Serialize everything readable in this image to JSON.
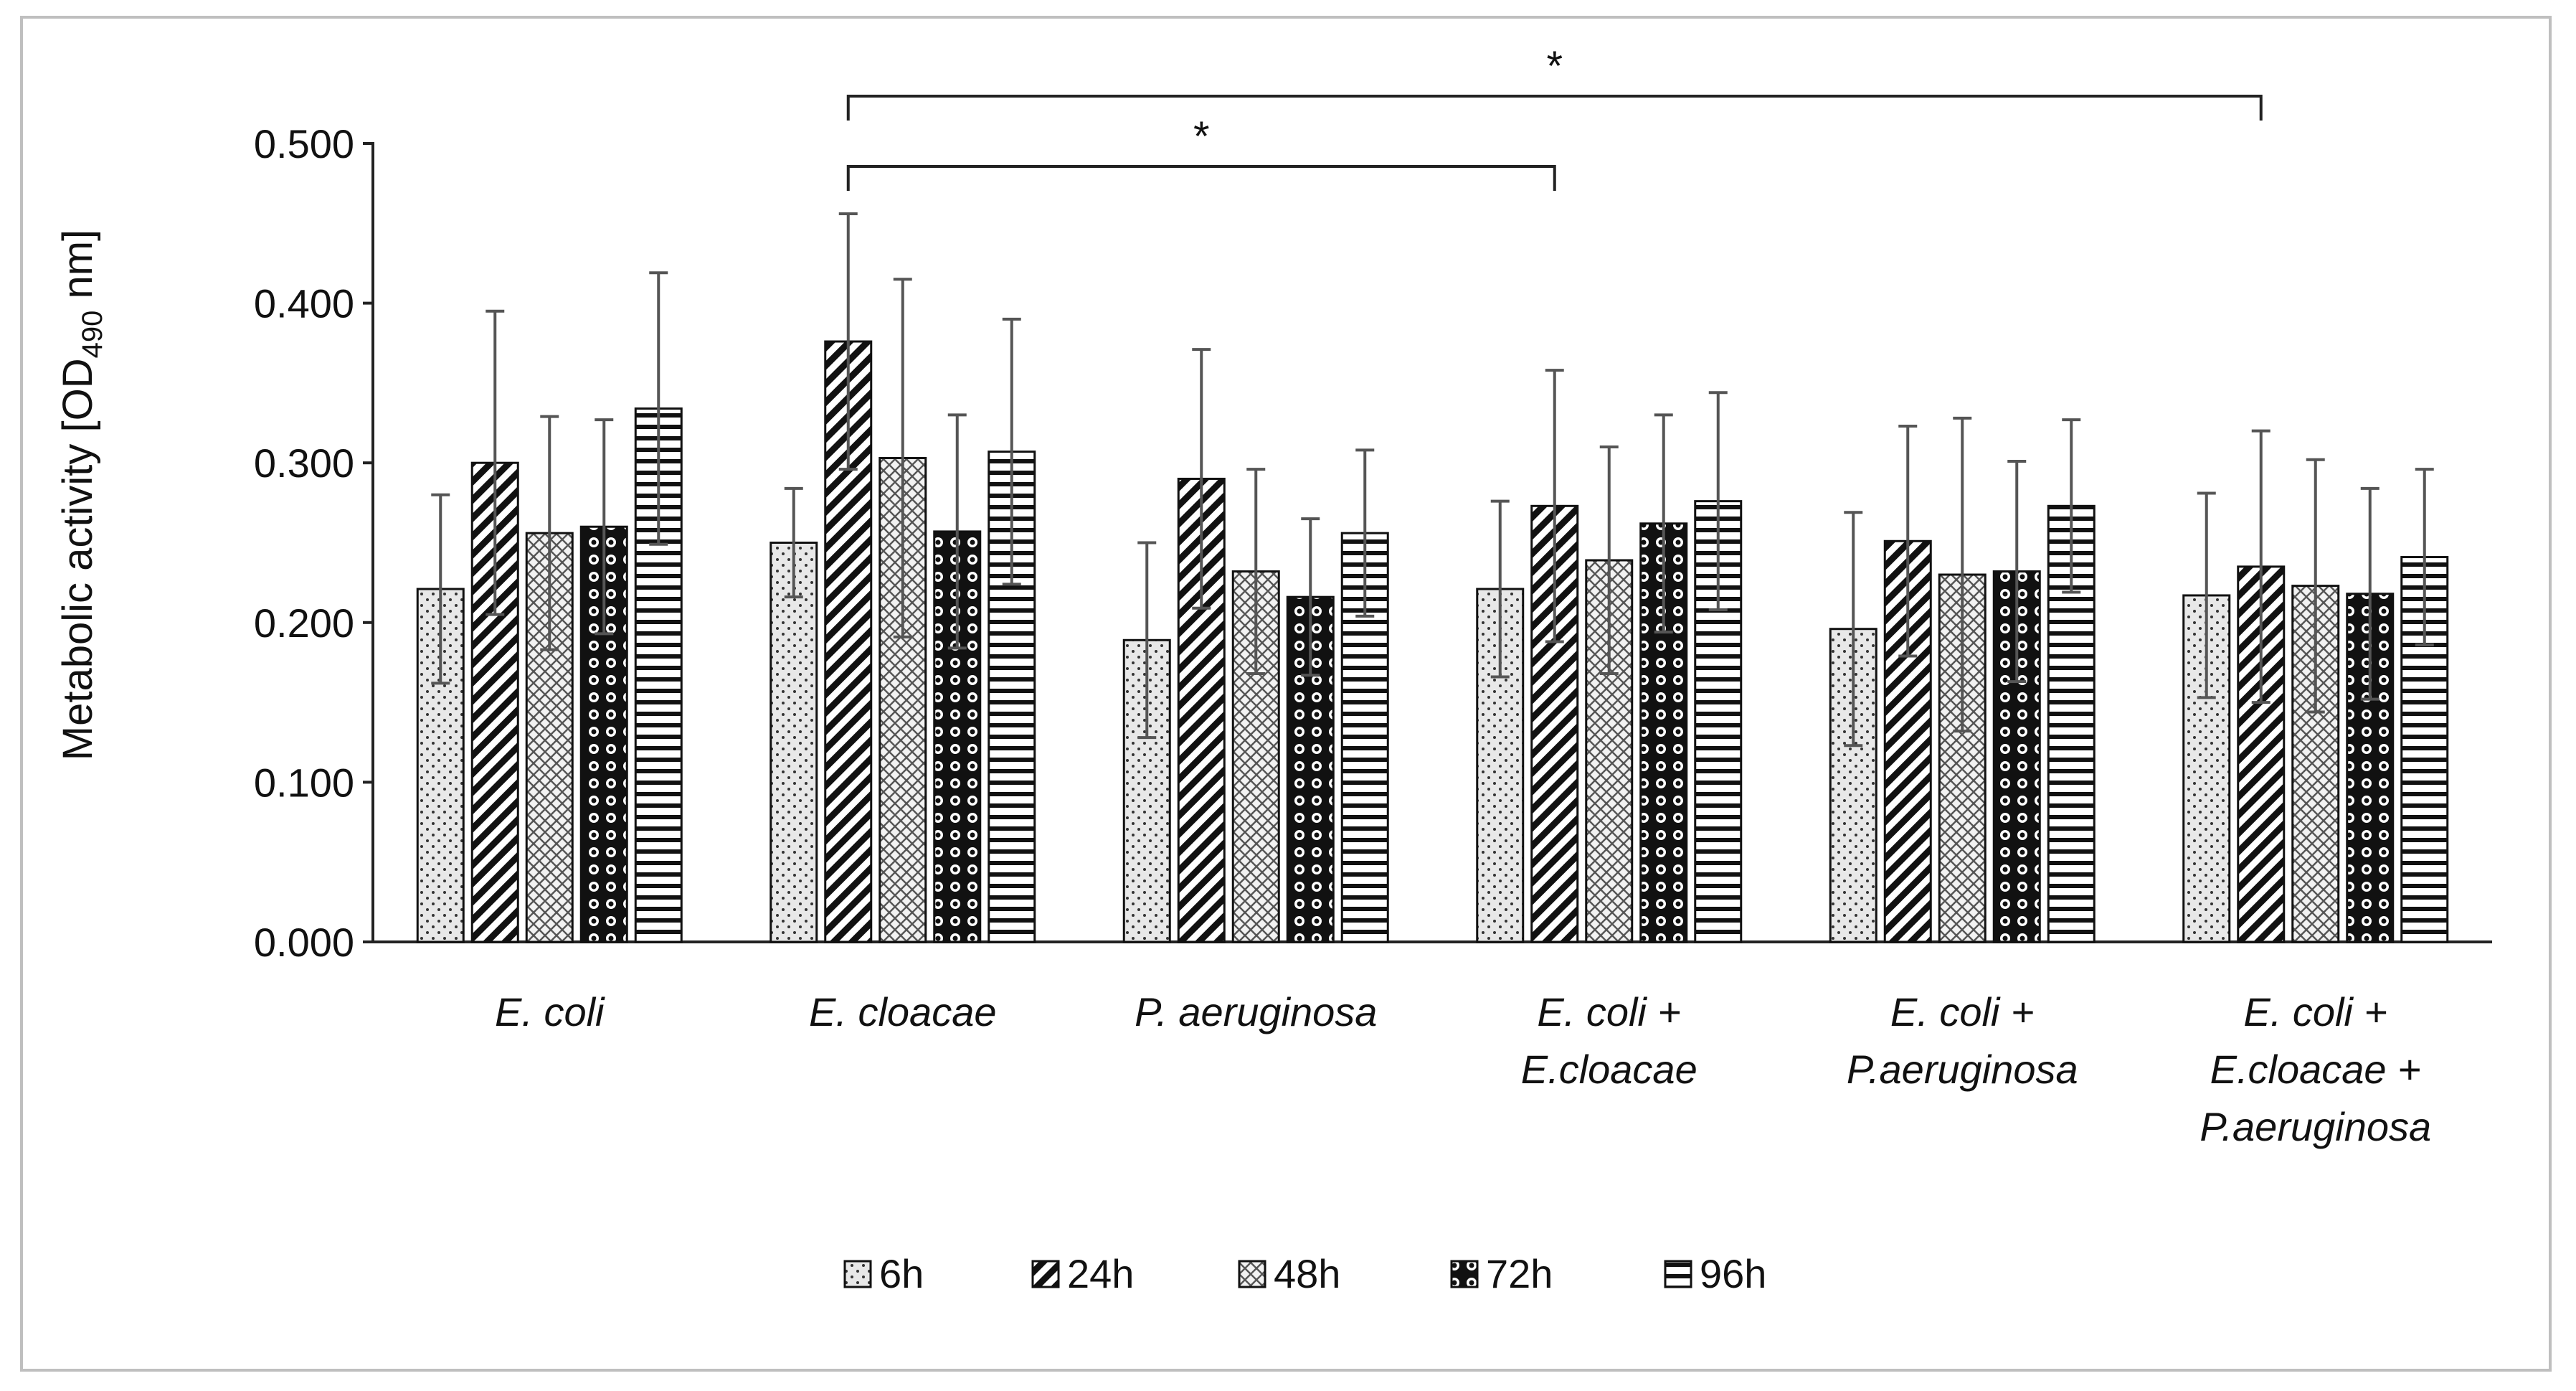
{
  "chart_data": {
    "type": "bar",
    "title": "",
    "xlabel": "",
    "ylabel": "Metabolic activity [OD490 nm]",
    "ylabel_parts": {
      "main": "Metabolic activity [OD",
      "sub": "490",
      "end": " nm]"
    },
    "ylim": [
      0,
      0.5
    ],
    "yticks": [
      "0.000",
      "0.100",
      "0.200",
      "0.300",
      "0.400",
      "0.500"
    ],
    "categories": [
      [
        "E. coli"
      ],
      [
        "E. cloacae"
      ],
      [
        "P. aeruginosa"
      ],
      [
        "E. coli +",
        "E.cloacae"
      ],
      [
        "E. coli +",
        "P.aeruginosa"
      ],
      [
        "E. coli +",
        "E.cloacae +",
        "P.aeruginosa"
      ]
    ],
    "series": [
      {
        "name": "6h",
        "pattern": "dots",
        "values": [
          0.221,
          0.25,
          0.189,
          0.221,
          0.196,
          0.217
        ],
        "errors": [
          0.059,
          0.034,
          0.061,
          0.055,
          0.073,
          0.064
        ]
      },
      {
        "name": "24h",
        "pattern": "diagonal",
        "values": [
          0.3,
          0.376,
          0.29,
          0.273,
          0.251,
          0.235
        ],
        "errors": [
          0.095,
          0.08,
          0.081,
          0.085,
          0.072,
          0.085
        ]
      },
      {
        "name": "48h",
        "pattern": "cross",
        "values": [
          0.256,
          0.303,
          0.232,
          0.239,
          0.23,
          0.223
        ],
        "errors": [
          0.073,
          0.112,
          0.064,
          0.071,
          0.098,
          0.079
        ]
      },
      {
        "name": "72h",
        "pattern": "circles",
        "values": [
          0.26,
          0.257,
          0.216,
          0.262,
          0.232,
          0.218
        ],
        "errors": [
          0.067,
          0.073,
          0.049,
          0.068,
          0.069,
          0.066
        ]
      },
      {
        "name": "96h",
        "pattern": "hlines",
        "values": [
          0.334,
          0.307,
          0.256,
          0.276,
          0.273,
          0.241
        ],
        "errors": [
          0.085,
          0.083,
          0.052,
          0.068,
          0.054,
          0.055
        ]
      }
    ],
    "significance": [
      {
        "from_category": 1,
        "to_category": 3,
        "label": "*"
      },
      {
        "from_category": 1,
        "to_category": 5,
        "label": "*"
      }
    ],
    "legend_position": "bottom"
  }
}
